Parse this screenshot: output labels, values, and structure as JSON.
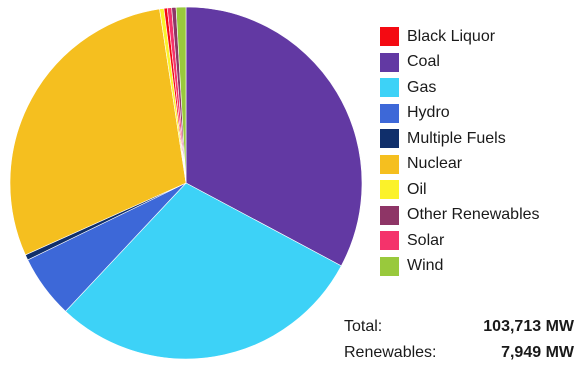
{
  "chart_data": {
    "type": "pie",
    "start_angle_deg": 0,
    "direction": "clockwise",
    "slices": [
      {
        "name": "Coal",
        "share_pct": 32.8,
        "color": "#6239a3"
      },
      {
        "name": "Gas",
        "share_pct": 29.2,
        "color": "#3dd2f7"
      },
      {
        "name": "Hydro",
        "share_pct": 5.8,
        "color": "#3d68d8"
      },
      {
        "name": "Multiple Fuels",
        "share_pct": 0.5,
        "color": "#102f6b"
      },
      {
        "name": "Nuclear",
        "share_pct": 29.3,
        "color": "#f5bf1f"
      },
      {
        "name": "Oil",
        "share_pct": 0.4,
        "color": "#fbf22a"
      },
      {
        "name": "Black Liquor",
        "share_pct": 0.3,
        "color": "#f40a12"
      },
      {
        "name": "Solar",
        "share_pct": 0.4,
        "color": "#f4336b"
      },
      {
        "name": "Other Renewables",
        "share_pct": 0.4,
        "color": "#8e3566"
      },
      {
        "name": "Wind",
        "share_pct": 0.9,
        "color": "#99c93c"
      }
    ]
  },
  "legend": {
    "items": [
      {
        "label": "Black Liquor",
        "color": "#f40a12"
      },
      {
        "label": "Coal",
        "color": "#6239a3"
      },
      {
        "label": "Gas",
        "color": "#3dd2f7"
      },
      {
        "label": "Hydro",
        "color": "#3d68d8"
      },
      {
        "label": "Multiple Fuels",
        "color": "#102f6b"
      },
      {
        "label": "Nuclear",
        "color": "#f5bf1f"
      },
      {
        "label": "Oil",
        "color": "#fbf22a"
      },
      {
        "label": "Other Renewables",
        "color": "#8e3566"
      },
      {
        "label": "Solar",
        "color": "#f4336b"
      },
      {
        "label": "Wind",
        "color": "#99c93c"
      }
    ]
  },
  "totals": {
    "total_label": "Total:",
    "total_value": "103,713 MW",
    "renewables_label": "Renewables:",
    "renewables_value": "7,949 MW"
  }
}
